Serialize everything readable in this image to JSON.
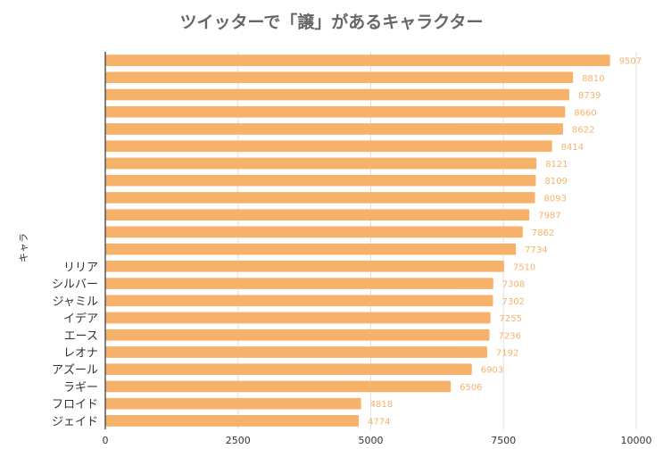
{
  "chart_data": {
    "type": "bar",
    "orientation": "horizontal",
    "title": "ツイッターで「譲」があるキャラクター",
    "ylabel": "キャラ",
    "xlabel": "",
    "categories": [
      "",
      "",
      "",
      "",
      "",
      "",
      "",
      "",
      "",
      "",
      "",
      "",
      "リリア",
      "シルバー",
      "ジャミル",
      "イデア",
      "エース",
      "レオナ",
      "アズール",
      "ラギー",
      "フロイド",
      "ジェイド"
    ],
    "values": [
      9507,
      8810,
      8739,
      8660,
      8622,
      8414,
      8121,
      8109,
      8093,
      7987,
      7862,
      7734,
      7510,
      7308,
      7302,
      7255,
      7236,
      7192,
      6903,
      6506,
      4818,
      4774
    ],
    "xlim": [
      0,
      10000
    ],
    "xticks": [
      0,
      2500,
      5000,
      7500,
      10000
    ],
    "grid": true,
    "legend": "none",
    "colors": {
      "bar": "#F6B26B",
      "label": "#F6B26B",
      "title": "#666666",
      "axis": "#333333",
      "grid": "#E0E0E0"
    }
  }
}
